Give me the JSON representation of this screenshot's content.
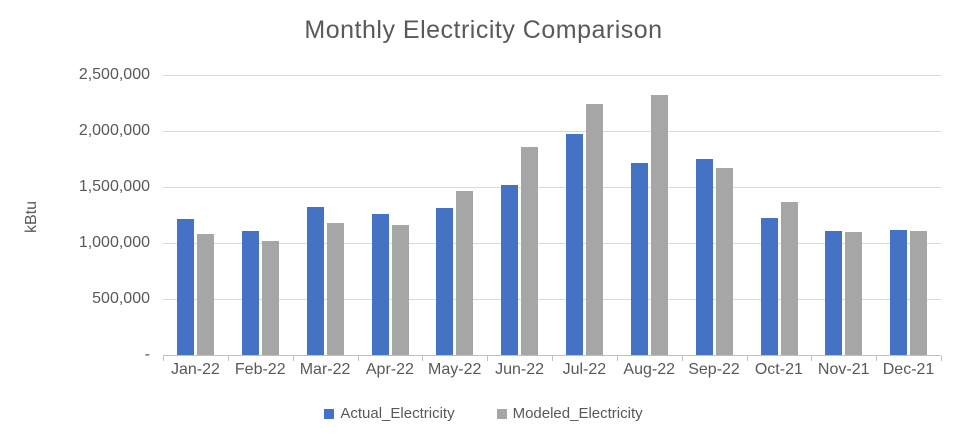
{
  "chart_data": {
    "type": "bar",
    "title": "Monthly Electricity Comparison",
    "xlabel": "",
    "ylabel": "kBtu",
    "categories": [
      "Jan-22",
      "Feb-22",
      "Mar-22",
      "Apr-22",
      "May-22",
      "Jun-22",
      "Jul-22",
      "Aug-22",
      "Sep-22",
      "Oct-21",
      "Nov-21",
      "Dec-21"
    ],
    "series": [
      {
        "name": "Actual_Electricity",
        "color": "#4472C4",
        "values": [
          1210000,
          1110000,
          1320000,
          1260000,
          1310000,
          1520000,
          1970000,
          1710000,
          1750000,
          1220000,
          1110000,
          1120000
        ]
      },
      {
        "name": "Modeled_Electricity",
        "color": "#A6A6A6",
        "values": [
          1080000,
          1020000,
          1180000,
          1160000,
          1460000,
          1860000,
          2240000,
          2320000,
          1670000,
          1370000,
          1100000,
          1110000
        ]
      }
    ],
    "ylim": [
      0,
      2500000
    ],
    "ytick_step": 500000,
    "ytick_labels": [
      "-",
      "500,000",
      "1,000,000",
      "1,500,000",
      "2,000,000",
      "2,500,000"
    ],
    "grid": true,
    "legend_position": "bottom",
    "colors": {
      "text": "#595959",
      "gridline": "#d9d9d9",
      "axis": "#bfbfbf"
    }
  }
}
